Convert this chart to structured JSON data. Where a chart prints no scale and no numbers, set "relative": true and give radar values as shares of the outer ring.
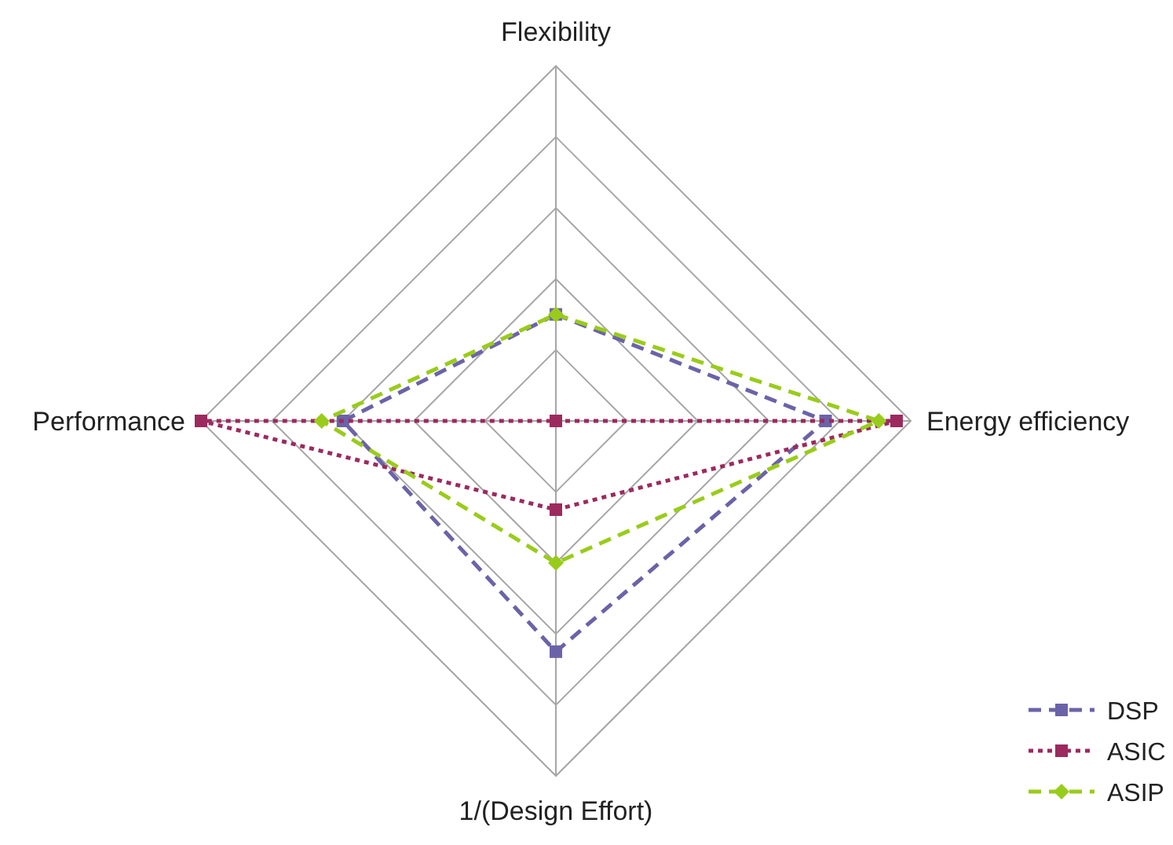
{
  "chart_data": {
    "type": "radar",
    "relative": true,
    "grid": true,
    "legend": "bottom right",
    "categories": [
      "Flexibility",
      "Energy efficiency",
      "1/(Design Effort)",
      "Performance"
    ],
    "series": [
      {
        "name": "DSP",
        "color": "#6b63a8",
        "marker": "square",
        "line_style": "dashed",
        "values": [
          0.3,
          0.76,
          0.65,
          0.6
        ]
      },
      {
        "name": "ASIC",
        "color": "#9c2a5e",
        "marker": "square",
        "line_style": "dotted",
        "values": [
          0,
          0.96,
          0.25,
          1.0
        ]
      },
      {
        "name": "ASIP",
        "color": "#99cc1a",
        "marker": "diamond",
        "line_style": "dashed",
        "values": [
          0.3,
          0.91,
          0.4,
          0.66
        ]
      }
    ]
  }
}
